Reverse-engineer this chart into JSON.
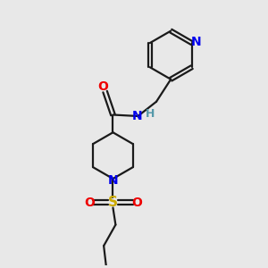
{
  "background_color": "#e8e8e8",
  "bond_color": "#1a1a1a",
  "N_color": "#0000ee",
  "O_color": "#ee0000",
  "S_color": "#ccaa00",
  "H_color": "#5599aa",
  "line_width": 1.6,
  "figsize": [
    3.0,
    3.0
  ],
  "dpi": 100,
  "xlim": [
    0,
    10
  ],
  "ylim": [
    0,
    10
  ]
}
